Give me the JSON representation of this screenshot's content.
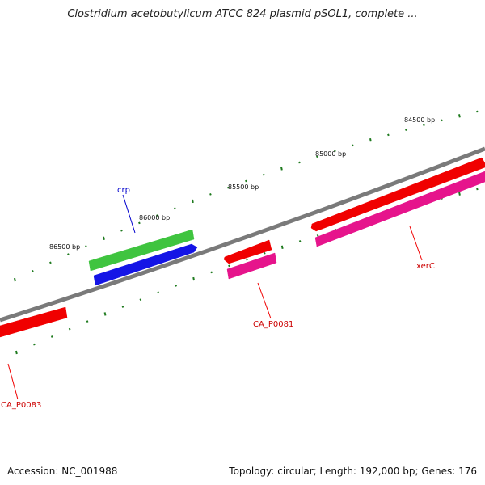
{
  "title": "Clostridium acetobutylicum ATCC 824 plasmid pSOL1, complete ...",
  "footer": {
    "accession": "Accession: NC_001988",
    "summary": "Topology: circular; Length: 192,000 bp; Genes: 176"
  },
  "bp_labels": [
    "84500 bp",
    "85000 bp",
    "85500 bp",
    "86000 bp",
    "86500 bp"
  ],
  "genes": [
    {
      "name": "crp",
      "color": "#0000cc"
    },
    {
      "name": "CA_P0081",
      "color": "#cc0000"
    },
    {
      "name": "xerC",
      "color": "#cc0000"
    },
    {
      "name": "CA_P0083",
      "color": "#cc0000"
    }
  ],
  "colors": {
    "backbone": "#7a7a7a",
    "tick": "#1e7a1e",
    "green_feature": "#3fc43f",
    "blue_feature": "#1414e6",
    "red_feature": "#f00000",
    "pink_feature": "#e6148c"
  }
}
